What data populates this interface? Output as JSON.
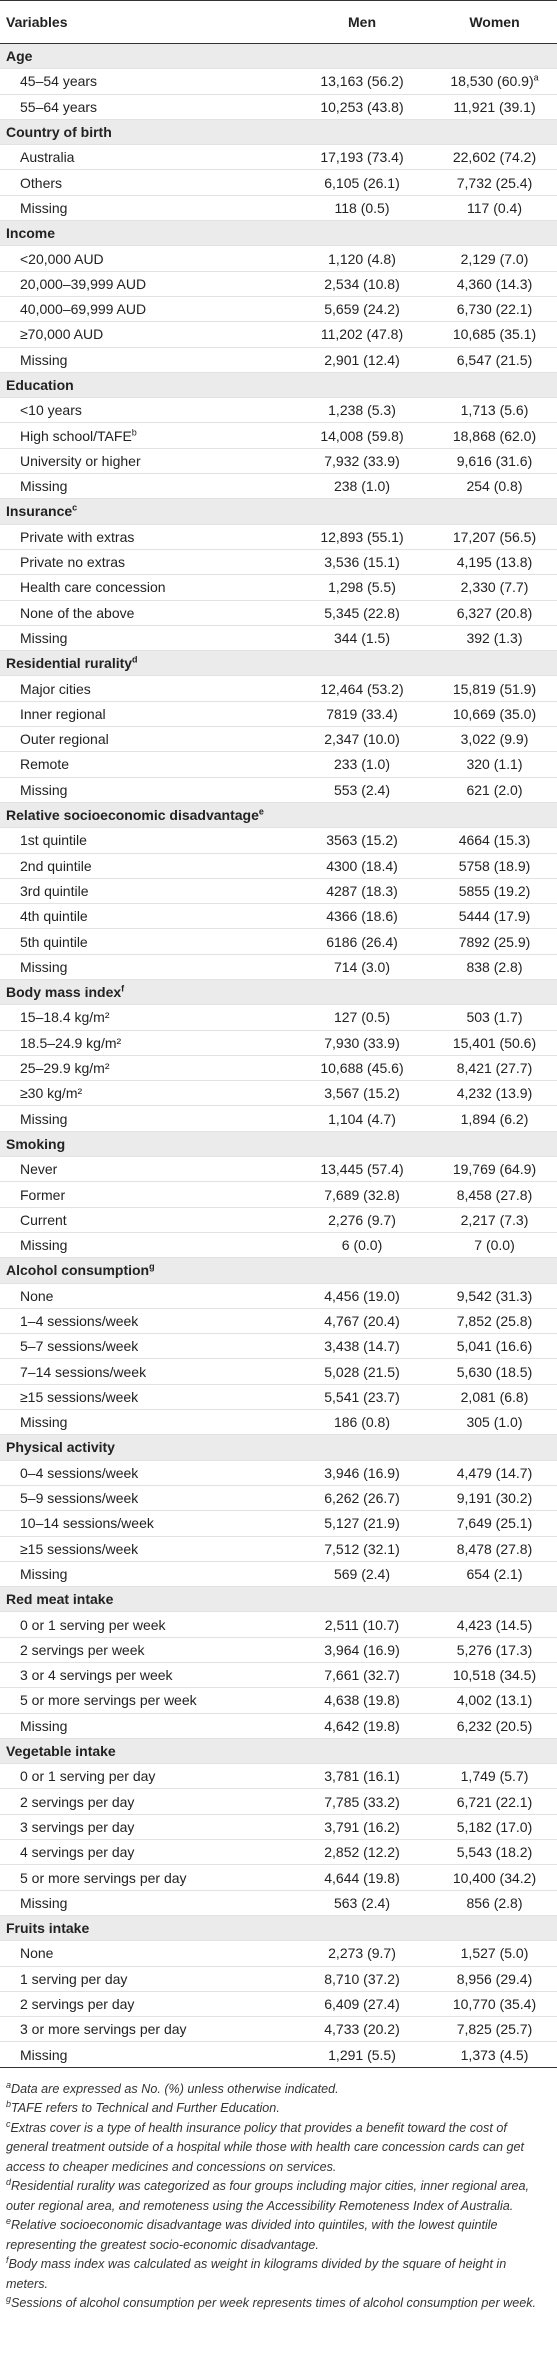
{
  "table": {
    "columns": [
      "Variables",
      "Men",
      "Women"
    ],
    "sections": [
      {
        "title": "Age",
        "rows": [
          [
            "45–54 years",
            "13,163 (56.2)",
            {
              "text": "18,530 (60.9)",
              "note": "a"
            }
          ],
          [
            "55–64 years",
            "10,253 (43.8)",
            "11,921 (39.1)"
          ]
        ]
      },
      {
        "title": "Country of birth",
        "rows": [
          [
            "Australia",
            "17,193 (73.4)",
            "22,602 (74.2)"
          ],
          [
            "Others",
            "6,105 (26.1)",
            "7,732 (25.4)"
          ],
          [
            "Missing",
            "118 (0.5)",
            "117 (0.4)"
          ]
        ]
      },
      {
        "title": "Income",
        "rows": [
          [
            "<20,000 AUD",
            "1,120 (4.8)",
            "2,129 (7.0)"
          ],
          [
            "20,000–39,999 AUD",
            "2,534 (10.8)",
            "4,360 (14.3)"
          ],
          [
            "40,000–69,999 AUD",
            "5,659 (24.2)",
            "6,730 (22.1)"
          ],
          [
            "≥70,000 AUD",
            "11,202 (47.8)",
            "10,685 (35.1)"
          ],
          [
            "Missing",
            "2,901 (12.4)",
            "6,547 (21.5)"
          ]
        ]
      },
      {
        "title": "Education",
        "rows": [
          [
            "<10 years",
            "1,238 (5.3)",
            "1,713 (5.6)"
          ],
          [
            {
              "text": "High school/TAFE",
              "note": "b"
            },
            "14,008 (59.8)",
            "18,868 (62.0)"
          ],
          [
            "University or higher",
            "7,932 (33.9)",
            "9,616 (31.6)"
          ],
          [
            "Missing",
            "238 (1.0)",
            "254 (0.8)"
          ]
        ]
      },
      {
        "title": "Insurance",
        "note": "c",
        "rows": [
          [
            "Private with extras",
            "12,893 (55.1)",
            "17,207 (56.5)"
          ],
          [
            "Private no extras",
            "3,536 (15.1)",
            "4,195 (13.8)"
          ],
          [
            "Health care concession",
            "1,298 (5.5)",
            "2,330 (7.7)"
          ],
          [
            "None of the above",
            "5,345 (22.8)",
            "6,327 (20.8)"
          ],
          [
            "Missing",
            "344 (1.5)",
            "392 (1.3)"
          ]
        ]
      },
      {
        "title": "Residential rurality",
        "note": "d",
        "rows": [
          [
            "Major cities",
            "12,464 (53.2)",
            "15,819 (51.9)"
          ],
          [
            "Inner regional",
            "7819 (33.4)",
            "10,669 (35.0)"
          ],
          [
            "Outer regional",
            "2,347 (10.0)",
            "3,022 (9.9)"
          ],
          [
            "Remote",
            "233 (1.0)",
            "320 (1.1)"
          ],
          [
            "Missing",
            "553 (2.4)",
            "621 (2.0)"
          ]
        ]
      },
      {
        "title": "Relative socioeconomic disadvantage",
        "note": "e",
        "rows": [
          [
            "1st quintile",
            "3563 (15.2)",
            "4664 (15.3)"
          ],
          [
            "2nd quintile",
            "4300 (18.4)",
            "5758 (18.9)"
          ],
          [
            "3rd quintile",
            "4287 (18.3)",
            "5855 (19.2)"
          ],
          [
            "4th quintile",
            "4366 (18.6)",
            "5444 (17.9)"
          ],
          [
            "5th quintile",
            "6186 (26.4)",
            "7892 (25.9)"
          ],
          [
            "Missing",
            "714 (3.0)",
            "838 (2.8)"
          ]
        ]
      },
      {
        "title": "Body mass index",
        "note": "f",
        "rows": [
          [
            "15–18.4 kg/m²",
            "127 (0.5)",
            "503 (1.7)"
          ],
          [
            "18.5–24.9 kg/m²",
            "7,930 (33.9)",
            "15,401 (50.6)"
          ],
          [
            "25–29.9 kg/m²",
            "10,688 (45.6)",
            "8,421 (27.7)"
          ],
          [
            "≥30 kg/m²",
            "3,567 (15.2)",
            "4,232 (13.9)"
          ],
          [
            "Missing",
            "1,104 (4.7)",
            "1,894 (6.2)"
          ]
        ]
      },
      {
        "title": "Smoking",
        "rows": [
          [
            "Never",
            "13,445 (57.4)",
            "19,769 (64.9)"
          ],
          [
            "Former",
            "7,689 (32.8)",
            "8,458 (27.8)"
          ],
          [
            "Current",
            "2,276 (9.7)",
            "2,217 (7.3)"
          ],
          [
            "Missing",
            "6 (0.0)",
            "7 (0.0)"
          ]
        ]
      },
      {
        "title": "Alcohol consumption",
        "note": "g",
        "rows": [
          [
            "None",
            "4,456 (19.0)",
            "9,542 (31.3)"
          ],
          [
            "1–4 sessions/week",
            "4,767 (20.4)",
            "7,852 (25.8)"
          ],
          [
            "5–7 sessions/week",
            "3,438 (14.7)",
            "5,041 (16.6)"
          ],
          [
            "7–14 sessions/week",
            "5,028 (21.5)",
            "5,630 (18.5)"
          ],
          [
            "≥15 sessions/week",
            "5,541 (23.7)",
            "2,081 (6.8)"
          ],
          [
            "Missing",
            "186 (0.8)",
            "305 (1.0)"
          ]
        ]
      },
      {
        "title": "Physical activity",
        "rows": [
          [
            "0–4 sessions/week",
            "3,946 (16.9)",
            "4,479 (14.7)"
          ],
          [
            "5–9 sessions/week",
            "6,262 (26.7)",
            "9,191 (30.2)"
          ],
          [
            "10–14 sessions/week",
            "5,127 (21.9)",
            "7,649 (25.1)"
          ],
          [
            "≥15 sessions/week",
            "7,512 (32.1)",
            "8,478 (27.8)"
          ],
          [
            "Missing",
            "569 (2.4)",
            "654 (2.1)"
          ]
        ]
      },
      {
        "title": "Red meat intake",
        "rows": [
          [
            "0 or 1 serving per week",
            "2,511 (10.7)",
            "4,423 (14.5)"
          ],
          [
            "2 servings per week",
            "3,964 (16.9)",
            "5,276 (17.3)"
          ],
          [
            "3 or 4 servings per week",
            "7,661 (32.7)",
            "10,518 (34.5)"
          ],
          [
            "5 or more servings per week",
            "4,638 (19.8)",
            "4,002 (13.1)"
          ],
          [
            "Missing",
            "4,642 (19.8)",
            "6,232 (20.5)"
          ]
        ]
      },
      {
        "title": "Vegetable intake",
        "rows": [
          [
            "0 or 1 serving per day",
            "3,781 (16.1)",
            "1,749 (5.7)"
          ],
          [
            "2 servings per day",
            "7,785 (33.2)",
            "6,721 (22.1)"
          ],
          [
            "3 servings per day",
            "3,791 (16.2)",
            "5,182 (17.0)"
          ],
          [
            "4 servings per day",
            "2,852 (12.2)",
            "5,543 (18.2)"
          ],
          [
            "5 or more servings per day",
            "4,644 (19.8)",
            "10,400 (34.2)"
          ],
          [
            "Missing",
            "563 (2.4)",
            "856 (2.8)"
          ]
        ]
      },
      {
        "title": "Fruits intake",
        "rows": [
          [
            "None",
            "2,273 (9.7)",
            "1,527 (5.0)"
          ],
          [
            "1 serving per day",
            "8,710 (37.2)",
            "8,956 (29.4)"
          ],
          [
            "2 servings per day",
            "6,409 (27.4)",
            "10,770 (35.4)"
          ],
          [
            "3 or more servings per day",
            "4,733 (20.2)",
            "7,825 (25.7)"
          ],
          [
            "Missing",
            "1,291 (5.5)",
            "1,373 (4.5)"
          ]
        ]
      }
    ]
  },
  "footnotes": [
    {
      "mark": "a",
      "text": "Data are expressed as No. (%) unless otherwise indicated."
    },
    {
      "mark": "b",
      "text": "TAFE refers to Technical and Further Education."
    },
    {
      "mark": "c",
      "text": "Extras cover is a type of health insurance policy that provides a benefit toward the cost of general treatment outside of a hospital while those with health care concession cards can get access to cheaper medicines and concessions on services."
    },
    {
      "mark": "d",
      "text": "Residential rurality was categorized as four groups including major cities, inner regional area, outer regional area, and remoteness using the Accessibility Remoteness Index of Australia."
    },
    {
      "mark": "e",
      "text": "Relative socioeconomic disadvantage was divided into quintiles, with the lowest quintile representing the greatest socio-economic disadvantage."
    },
    {
      "mark": "f",
      "text": "Body mass index was calculated as weight in kilograms divided by the square of height in meters."
    },
    {
      "mark": "g",
      "text": "Sessions of alcohol consumption per week represents times of alcohol consumption per week."
    }
  ]
}
